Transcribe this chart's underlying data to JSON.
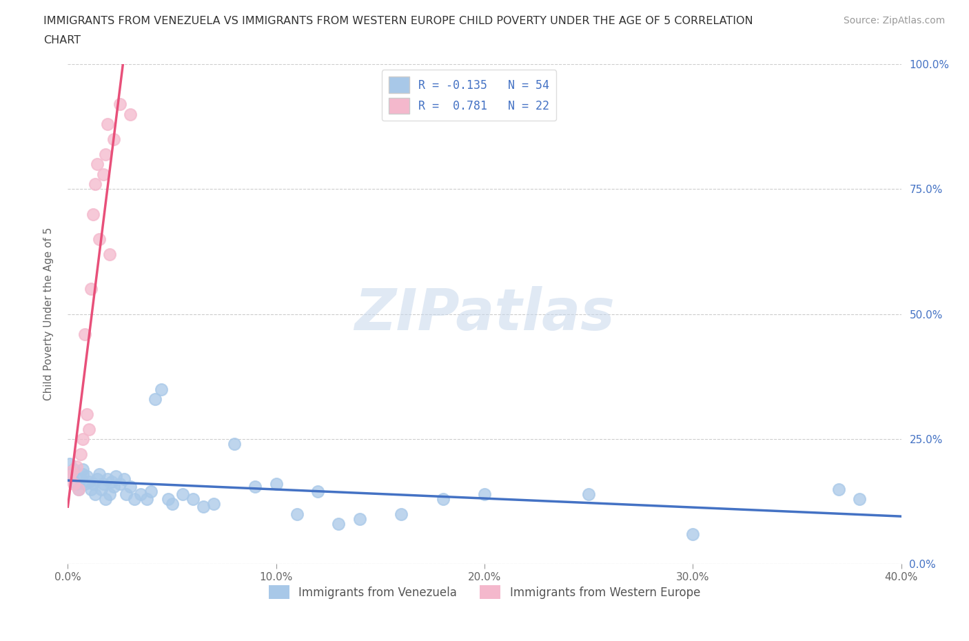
{
  "title_line1": "IMMIGRANTS FROM VENEZUELA VS IMMIGRANTS FROM WESTERN EUROPE CHILD POVERTY UNDER THE AGE OF 5 CORRELATION",
  "title_line2": "CHART",
  "source": "Source: ZipAtlas.com",
  "ylabel": "Child Poverty Under the Age of 5",
  "xlim": [
    0.0,
    0.4
  ],
  "ylim": [
    0.0,
    1.0
  ],
  "xticks": [
    0.0,
    0.1,
    0.2,
    0.3,
    0.4
  ],
  "yticks": [
    0.0,
    0.25,
    0.5,
    0.75,
    1.0
  ],
  "xtick_labels": [
    "0.0%",
    "10.0%",
    "20.0%",
    "30.0%",
    "40.0%"
  ],
  "ytick_labels_right": [
    "0.0%",
    "25.0%",
    "50.0%",
    "75.0%",
    "100.0%"
  ],
  "background_color": "#ffffff",
  "watermark_text": "ZIPatlas",
  "series": [
    {
      "name": "Immigrants from Venezuela",
      "color": "#a8c8e8",
      "R": -0.135,
      "N": 54,
      "line_color": "#4472c4",
      "x": [
        0.001,
        0.002,
        0.003,
        0.004,
        0.005,
        0.006,
        0.007,
        0.007,
        0.008,
        0.009,
        0.01,
        0.011,
        0.012,
        0.013,
        0.014,
        0.015,
        0.016,
        0.017,
        0.018,
        0.019,
        0.02,
        0.021,
        0.022,
        0.023,
        0.025,
        0.027,
        0.028,
        0.03,
        0.032,
        0.035,
        0.038,
        0.04,
        0.042,
        0.045,
        0.048,
        0.05,
        0.055,
        0.06,
        0.065,
        0.07,
        0.08,
        0.09,
        0.1,
        0.11,
        0.12,
        0.13,
        0.14,
        0.16,
        0.18,
        0.2,
        0.25,
        0.3,
        0.37,
        0.38
      ],
      "y": [
        0.2,
        0.18,
        0.19,
        0.16,
        0.15,
        0.17,
        0.18,
        0.19,
        0.16,
        0.175,
        0.165,
        0.15,
        0.16,
        0.14,
        0.17,
        0.18,
        0.15,
        0.16,
        0.13,
        0.17,
        0.14,
        0.165,
        0.155,
        0.175,
        0.16,
        0.17,
        0.14,
        0.155,
        0.13,
        0.14,
        0.13,
        0.145,
        0.33,
        0.35,
        0.13,
        0.12,
        0.14,
        0.13,
        0.115,
        0.12,
        0.24,
        0.155,
        0.16,
        0.1,
        0.145,
        0.08,
        0.09,
        0.1,
        0.13,
        0.14,
        0.14,
        0.06,
        0.15,
        0.13
      ]
    },
    {
      "name": "Immigrants from Western Europe",
      "color": "#f4b8cc",
      "R": 0.781,
      "N": 22,
      "line_color": "#e8507a",
      "x": [
        0.001,
        0.002,
        0.003,
        0.004,
        0.005,
        0.006,
        0.007,
        0.008,
        0.009,
        0.01,
        0.011,
        0.012,
        0.013,
        0.014,
        0.015,
        0.017,
        0.018,
        0.019,
        0.02,
        0.022,
        0.025,
        0.03
      ],
      "y": [
        0.175,
        0.185,
        0.16,
        0.195,
        0.15,
        0.22,
        0.25,
        0.46,
        0.3,
        0.27,
        0.55,
        0.7,
        0.76,
        0.8,
        0.65,
        0.78,
        0.82,
        0.88,
        0.62,
        0.85,
        0.92,
        0.9
      ]
    }
  ],
  "weu_line_x": [
    0.0,
    0.038
  ],
  "ven_line_x": [
    0.0,
    0.4
  ]
}
